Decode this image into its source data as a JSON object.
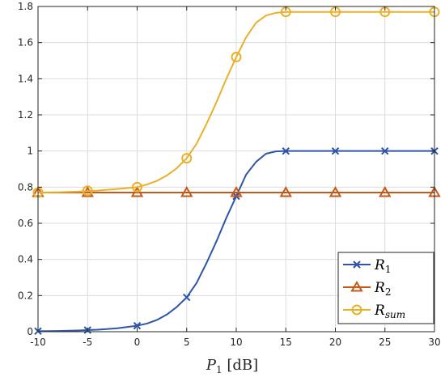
{
  "chart_data": {
    "type": "line",
    "xlabel_main": "P",
    "xlabel_sub": "1",
    "xlabel_unit": " [dB]",
    "xlim": [
      -10,
      30
    ],
    "ylim": [
      0,
      1.8
    ],
    "grid": true,
    "legend_position": "bottom-right",
    "x_ticks": [
      "-10",
      "-5",
      "0",
      "5",
      "10",
      "15",
      "20",
      "25",
      "30"
    ],
    "y_ticks": [
      "0",
      "0.2",
      "0.4",
      "0.6",
      "0.8",
      "1",
      "1.2",
      "1.4",
      "1.6",
      "1.8"
    ],
    "x_tick_values": [
      -10,
      -5,
      0,
      5,
      10,
      15,
      20,
      25,
      30
    ],
    "y_tick_values": [
      0,
      0.2,
      0.4,
      0.6,
      0.8,
      1.0,
      1.2,
      1.4,
      1.6,
      1.8
    ],
    "series": [
      {
        "name": "R",
        "name_sub": "1",
        "color": "#2f55a8",
        "marker": "x",
        "x": [
          -10,
          -5,
          0,
          5,
          10,
          15,
          20,
          25,
          30
        ],
        "y": [
          0.003,
          0.009,
          0.033,
          0.19,
          0.75,
          1.0,
          1.0,
          1.0,
          1.0
        ],
        "curve_x": [
          -10,
          -8,
          -6,
          -4,
          -2,
          0,
          1,
          2,
          3,
          4,
          5,
          6,
          7,
          8,
          9,
          10,
          11,
          12,
          13,
          14,
          15,
          20,
          25,
          30
        ],
        "curve_y": [
          0.003,
          0.004,
          0.007,
          0.011,
          0.019,
          0.033,
          0.045,
          0.065,
          0.095,
          0.137,
          0.19,
          0.27,
          0.38,
          0.5,
          0.63,
          0.75,
          0.87,
          0.94,
          0.985,
          0.998,
          1.0,
          1.0,
          1.0,
          1.0
        ]
      },
      {
        "name": "R",
        "name_sub": "2",
        "color": "#c45a1a",
        "marker": "triangle",
        "x": [
          -10,
          -5,
          0,
          5,
          10,
          15,
          20,
          25,
          30
        ],
        "y": [
          0.77,
          0.77,
          0.77,
          0.77,
          0.77,
          0.77,
          0.77,
          0.77,
          0.77
        ],
        "curve_x": [
          -10,
          30
        ],
        "curve_y": [
          0.77,
          0.77
        ]
      },
      {
        "name": "R",
        "name_sub": "sum",
        "color": "#eab02a",
        "marker": "circle",
        "x": [
          -10,
          -5,
          0,
          5,
          10,
          15,
          20,
          25,
          30
        ],
        "y": [
          0.77,
          0.78,
          0.8,
          0.96,
          1.52,
          1.77,
          1.77,
          1.77,
          1.77
        ],
        "curve_x": [
          -10,
          -8,
          -6,
          -4,
          -2,
          0,
          1,
          2,
          3,
          4,
          5,
          6,
          7,
          8,
          9,
          10,
          11,
          12,
          13,
          14,
          15,
          20,
          25,
          30
        ],
        "curve_y": [
          0.77,
          0.772,
          0.775,
          0.781,
          0.79,
          0.8,
          0.815,
          0.835,
          0.865,
          0.905,
          0.96,
          1.04,
          1.15,
          1.27,
          1.4,
          1.52,
          1.63,
          1.71,
          1.75,
          1.765,
          1.77,
          1.77,
          1.77,
          1.77
        ]
      }
    ]
  }
}
